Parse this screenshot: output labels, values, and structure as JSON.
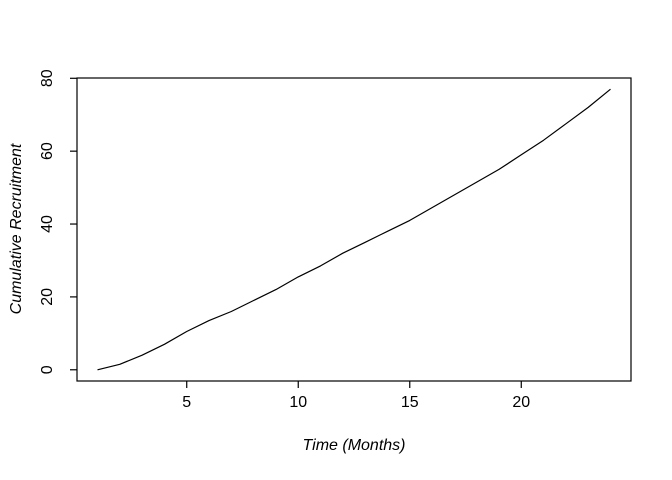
{
  "chart_data": {
    "type": "line",
    "title": "",
    "xlabel": "Time (Months)",
    "ylabel": "Cumulative Recruitment",
    "x": [
      1,
      2,
      3,
      4,
      5,
      6,
      7,
      8,
      9,
      10,
      11,
      12,
      13,
      14,
      15,
      16,
      17,
      18,
      19,
      20,
      21,
      22,
      23,
      24
    ],
    "series": [
      {
        "name": "Cumulative Recruitment",
        "values": [
          0,
          1.5,
          4,
          7,
          10.5,
          13.5,
          16,
          19,
          22,
          25.5,
          28.5,
          32,
          35,
          38,
          41,
          44.5,
          48,
          51.5,
          55,
          59,
          63,
          67.5,
          72,
          77
        ]
      }
    ],
    "xlim": [
      0.08,
      24.92
    ],
    "ylim": [
      -3.08,
      80.08
    ],
    "x_ticks": [
      5,
      10,
      15,
      20
    ],
    "x_tick_labels": [
      "5",
      "10",
      "15",
      "20"
    ],
    "y_ticks": [
      0,
      20,
      40,
      60,
      80
    ],
    "y_tick_labels": [
      "0",
      "20",
      "40",
      "60",
      "80"
    ],
    "line_color": "#000000",
    "axis_color": "#000000",
    "background": "#ffffff",
    "grid": false,
    "legend": "none",
    "box": true
  }
}
